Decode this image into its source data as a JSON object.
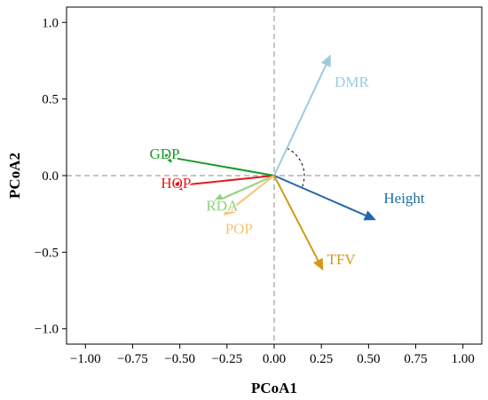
{
  "chart_data": {
    "type": "scatter",
    "subtype": "biplot-vectors",
    "title": "",
    "xlabel": "PCoA1",
    "ylabel": "PCoA2",
    "xlim": [
      -1.1,
      1.1
    ],
    "ylim": [
      -1.1,
      1.1
    ],
    "x_ticks": [
      -1.0,
      -0.75,
      -0.5,
      -0.25,
      0.0,
      0.25,
      0.5,
      0.75,
      1.0
    ],
    "x_tick_labels": [
      "−1.00",
      "−0.75",
      "−0.50",
      "−0.25",
      "0.00",
      "0.25",
      "0.50",
      "0.75",
      "1.00"
    ],
    "y_ticks": [
      -1.0,
      -0.5,
      0.0,
      0.5,
      1.0
    ],
    "y_tick_labels": [
      "−1.0",
      "−0.5",
      "0.0",
      "0.5",
      "1.0"
    ],
    "grid": false,
    "reference_lines": "dashed lines at x = 0 and y = 0",
    "angle_arc": "dashed arc between DMR and Height vectors",
    "vectors": [
      {
        "name": "DMR",
        "x": 0.3,
        "y": 0.79,
        "color": "#9ecae1",
        "label_x": 0.32,
        "label_y": 0.58
      },
      {
        "name": "GDP",
        "x": -0.6,
        "y": 0.13,
        "color": "#1a9a2a",
        "label_x": -0.66,
        "label_y": 0.11
      },
      {
        "name": "HOP",
        "x": -0.55,
        "y": -0.07,
        "color": "#e8191c",
        "label_x": -0.6,
        "label_y": -0.08
      },
      {
        "name": "RDA",
        "x": -0.33,
        "y": -0.18,
        "color": "#8fd17b",
        "label_x": -0.36,
        "label_y": -0.23
      },
      {
        "name": "POP",
        "x": -0.27,
        "y": -0.26,
        "color": "#f5c476",
        "label_x": -0.26,
        "label_y": -0.38
      },
      {
        "name": "Height",
        "x": 0.54,
        "y": -0.29,
        "color": "#2166ac",
        "label_color": "#1b6fa8",
        "label_x": 0.58,
        "label_y": -0.18
      },
      {
        "name": "TFV",
        "x": 0.26,
        "y": -0.62,
        "color": "#d39a16",
        "label_x": 0.28,
        "label_y": -0.58
      }
    ]
  }
}
